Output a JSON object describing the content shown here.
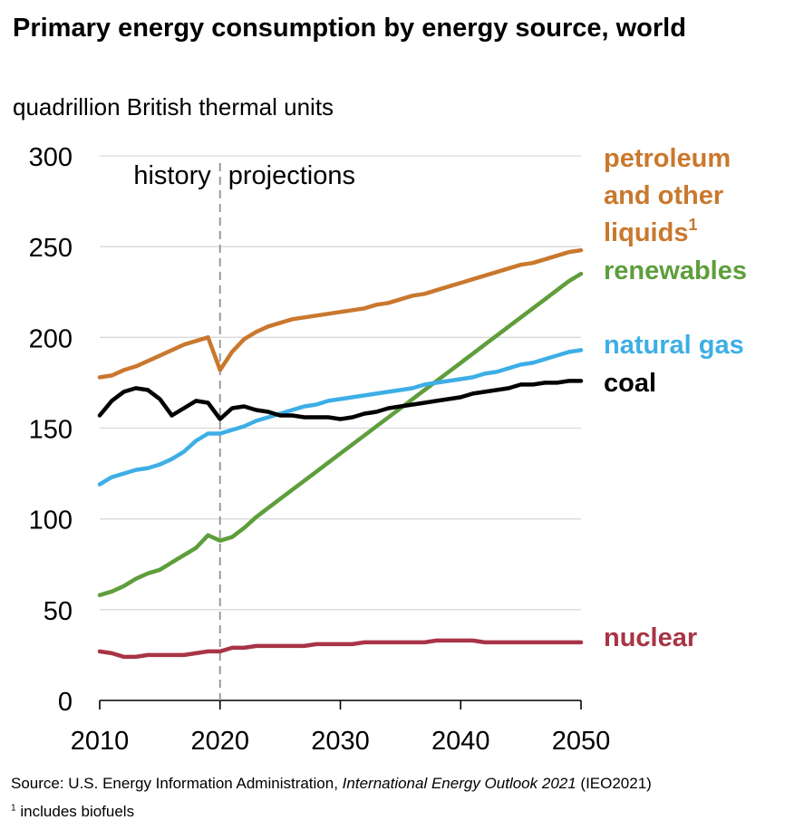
{
  "title": "Primary energy consumption by energy source, world",
  "subtitle": "quadrillion British thermal units",
  "source": {
    "prefix": "Source:  U.S. Energy Information Administration, ",
    "italic": "International Energy Outlook 2021",
    "suffix": " (IEO2021)"
  },
  "footnote": {
    "marker": "1",
    "text": " includes biofuels"
  },
  "chart_data": {
    "type": "line",
    "xlim": [
      2010,
      2050
    ],
    "ylim": [
      0,
      300
    ],
    "x_ticks": [
      "2010",
      "2020",
      "2030",
      "2040",
      "2050"
    ],
    "y_ticks": [
      "0",
      "50",
      "100",
      "150",
      "200",
      "250",
      "300"
    ],
    "grid": true,
    "annotations": {
      "history": "history",
      "projections": "projections",
      "divider_year": 2020
    },
    "x": [
      2010,
      2011,
      2012,
      2013,
      2014,
      2015,
      2016,
      2017,
      2018,
      2019,
      2020,
      2021,
      2022,
      2023,
      2024,
      2025,
      2026,
      2027,
      2028,
      2029,
      2030,
      2031,
      2032,
      2033,
      2034,
      2035,
      2036,
      2037,
      2038,
      2039,
      2040,
      2041,
      2042,
      2043,
      2044,
      2045,
      2046,
      2047,
      2048,
      2049,
      2050
    ],
    "series": [
      {
        "name": "petroleum and other liquids",
        "footnote_marker": "1",
        "color": "#C9782E",
        "values": [
          178,
          179,
          182,
          184,
          187,
          190,
          193,
          196,
          198,
          200,
          182,
          192,
          199,
          203,
          206,
          208,
          210,
          211,
          212,
          213,
          214,
          215,
          216,
          218,
          219,
          221,
          223,
          224,
          226,
          228,
          230,
          232,
          234,
          236,
          238,
          240,
          241,
          243,
          245,
          247,
          248
        ]
      },
      {
        "name": "renewables",
        "color": "#5E9E3C",
        "values": [
          58,
          60,
          63,
          67,
          70,
          72,
          76,
          80,
          84,
          91,
          88,
          90,
          95,
          101,
          106,
          111,
          116,
          121,
          126,
          131,
          136,
          141,
          146,
          151,
          156,
          161,
          166,
          171,
          176,
          181,
          186,
          191,
          196,
          201,
          206,
          211,
          216,
          221,
          226,
          231,
          235
        ]
      },
      {
        "name": "natural gas",
        "color": "#3DAEE6",
        "values": [
          119,
          123,
          125,
          127,
          128,
          130,
          133,
          137,
          143,
          147,
          147,
          149,
          151,
          154,
          156,
          158,
          160,
          162,
          163,
          165,
          166,
          167,
          168,
          169,
          170,
          171,
          172,
          174,
          175,
          176,
          177,
          178,
          180,
          181,
          183,
          185,
          186,
          188,
          190,
          192,
          193
        ]
      },
      {
        "name": "coal",
        "color": "#000000",
        "values": [
          157,
          165,
          170,
          172,
          171,
          166,
          157,
          161,
          165,
          164,
          155,
          161,
          162,
          160,
          159,
          157,
          157,
          156,
          156,
          156,
          155,
          156,
          158,
          159,
          161,
          162,
          163,
          164,
          165,
          166,
          167,
          169,
          170,
          171,
          172,
          174,
          174,
          175,
          175,
          176,
          176
        ]
      },
      {
        "name": "nuclear",
        "color": "#A83446",
        "values": [
          27,
          26,
          24,
          24,
          25,
          25,
          25,
          25,
          26,
          27,
          27,
          29,
          29,
          30,
          30,
          30,
          30,
          30,
          31,
          31,
          31,
          31,
          32,
          32,
          32,
          32,
          32,
          32,
          33,
          33,
          33,
          33,
          32,
          32,
          32,
          32,
          32,
          32,
          32,
          32,
          32
        ]
      }
    ]
  }
}
